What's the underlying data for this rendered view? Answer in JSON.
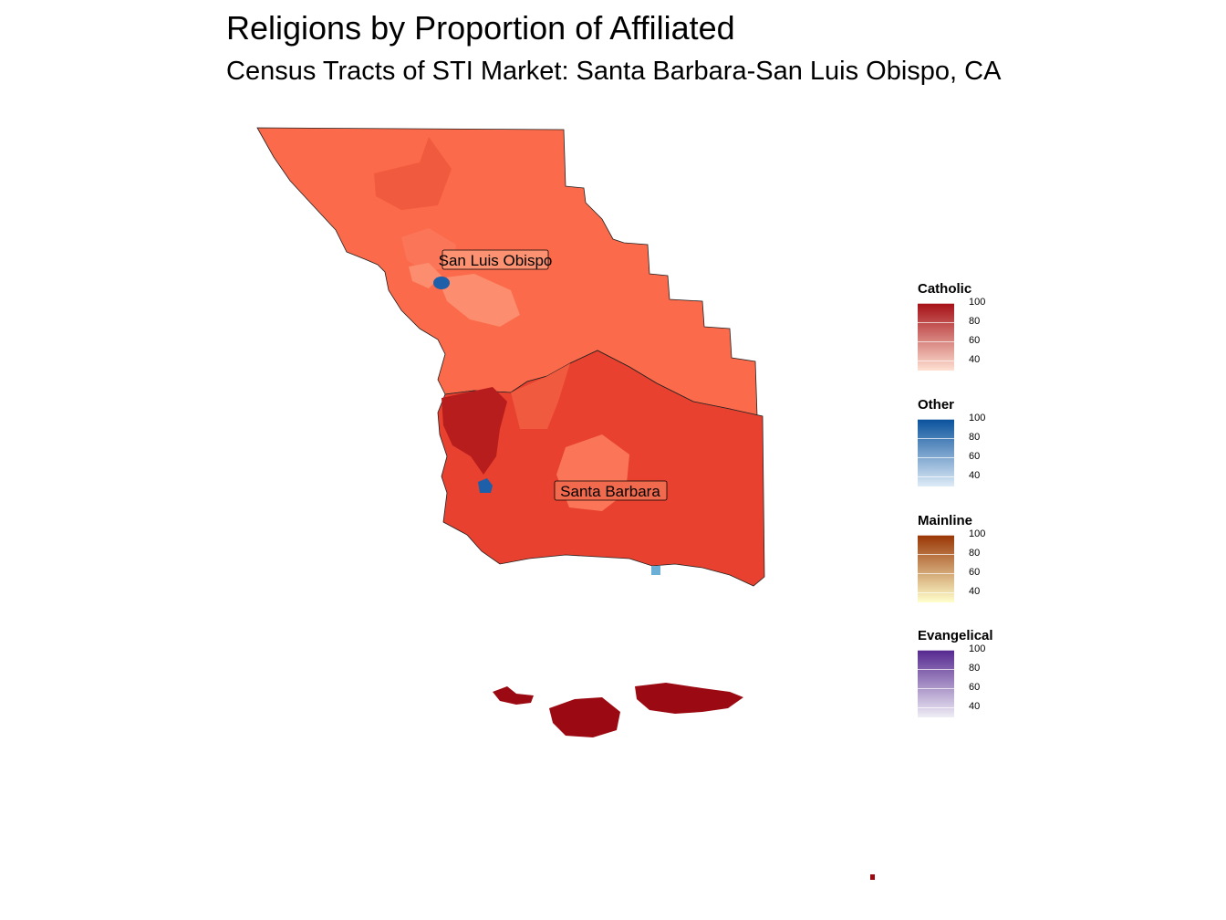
{
  "title": "Religions by Proportion of Affiliated",
  "subtitle": "Census Tracts of STI Market: Santa Barbara-San Luis Obispo, CA",
  "map_labels": [
    {
      "text": "San Luis Obispo"
    },
    {
      "text": "Santa Barbara"
    }
  ],
  "legends": [
    {
      "title": "Catholic",
      "ticks": [
        "100",
        "80",
        "60",
        "40"
      ],
      "color_low": "#fee0d2",
      "color_high": "#a50f15"
    },
    {
      "title": "Other",
      "ticks": [
        "100",
        "80",
        "60",
        "40"
      ],
      "color_low": "#deebf7",
      "color_high": "#08519c"
    },
    {
      "title": "Mainline",
      "ticks": [
        "100",
        "80",
        "60",
        "40"
      ],
      "color_low": "#ffffcc",
      "color_high": "#993404"
    },
    {
      "title": "Evangelical",
      "ticks": [
        "100",
        "80",
        "60",
        "40"
      ],
      "color_low": "#efedf5",
      "color_high": "#54278f"
    }
  ],
  "legend_range": [
    30,
    100
  ]
}
